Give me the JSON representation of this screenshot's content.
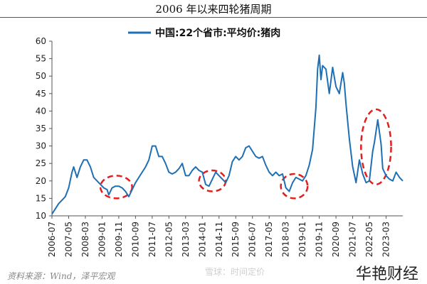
{
  "chart_data": {
    "type": "line",
    "title": "2006 年以来四轮猪周期",
    "series": [
      {
        "name": "中国:22个省市:平均价:猪肉",
        "color": "#1f6fb4",
        "points": [
          [
            "2006-07",
            10.5
          ],
          [
            "2006-09",
            12.0
          ],
          [
            "2006-11",
            13.5
          ],
          [
            "2007-01",
            14.5
          ],
          [
            "2007-03",
            15.5
          ],
          [
            "2007-05",
            18.0
          ],
          [
            "2007-07",
            22.5
          ],
          [
            "2007-08",
            24.0
          ],
          [
            "2007-10",
            21.0
          ],
          [
            "2007-12",
            24.0
          ],
          [
            "2008-02",
            26.0
          ],
          [
            "2008-04",
            26.0
          ],
          [
            "2008-06",
            24.0
          ],
          [
            "2008-08",
            21.0
          ],
          [
            "2008-10",
            20.0
          ],
          [
            "2008-12",
            19.0
          ],
          [
            "2009-02",
            18.0
          ],
          [
            "2009-04",
            17.5
          ],
          [
            "2009-05",
            16.0
          ],
          [
            "2009-07",
            18.0
          ],
          [
            "2009-09",
            18.5
          ],
          [
            "2009-11",
            18.5
          ],
          [
            "2010-01",
            18.0
          ],
          [
            "2010-03",
            17.0
          ],
          [
            "2010-05",
            15.5
          ],
          [
            "2010-07",
            17.5
          ],
          [
            "2010-09",
            19.5
          ],
          [
            "2010-11",
            21.0
          ],
          [
            "2011-01",
            22.5
          ],
          [
            "2011-03",
            24.0
          ],
          [
            "2011-05",
            26.0
          ],
          [
            "2011-07",
            30.0
          ],
          [
            "2011-09",
            30.0
          ],
          [
            "2011-11",
            27.0
          ],
          [
            "2012-01",
            27.0
          ],
          [
            "2012-03",
            25.0
          ],
          [
            "2012-05",
            22.5
          ],
          [
            "2012-07",
            22.0
          ],
          [
            "2012-09",
            22.5
          ],
          [
            "2012-11",
            23.5
          ],
          [
            "2013-01",
            25.0
          ],
          [
            "2013-03",
            21.5
          ],
          [
            "2013-05",
            21.5
          ],
          [
            "2013-07",
            23.0
          ],
          [
            "2013-09",
            24.0
          ],
          [
            "2013-11",
            23.0
          ],
          [
            "2014-01",
            22.5
          ],
          [
            "2014-03",
            19.0
          ],
          [
            "2014-05",
            18.5
          ],
          [
            "2014-07",
            20.5
          ],
          [
            "2014-09",
            22.5
          ],
          [
            "2014-11",
            21.5
          ],
          [
            "2015-01",
            20.5
          ],
          [
            "2015-03",
            19.5
          ],
          [
            "2015-05",
            21.5
          ],
          [
            "2015-07",
            25.5
          ],
          [
            "2015-09",
            27.0
          ],
          [
            "2015-11",
            26.0
          ],
          [
            "2016-01",
            27.0
          ],
          [
            "2016-03",
            29.5
          ],
          [
            "2016-05",
            30.0
          ],
          [
            "2016-07",
            28.5
          ],
          [
            "2016-09",
            27.0
          ],
          [
            "2016-11",
            26.5
          ],
          [
            "2017-01",
            27.0
          ],
          [
            "2017-03",
            24.5
          ],
          [
            "2017-05",
            22.5
          ],
          [
            "2017-07",
            21.5
          ],
          [
            "2017-09",
            22.5
          ],
          [
            "2017-11",
            21.5
          ],
          [
            "2018-01",
            22.0
          ],
          [
            "2018-03",
            18.0
          ],
          [
            "2018-05",
            17.0
          ],
          [
            "2018-07",
            19.5
          ],
          [
            "2018-09",
            21.0
          ],
          [
            "2018-11",
            20.5
          ],
          [
            "2019-01",
            20.0
          ],
          [
            "2019-03",
            21.5
          ],
          [
            "2019-05",
            24.5
          ],
          [
            "2019-07",
            29.0
          ],
          [
            "2019-09",
            41.0
          ],
          [
            "2019-10",
            52.0
          ],
          [
            "2019-11",
            56.0
          ],
          [
            "2019-12",
            49.0
          ],
          [
            "2020-01",
            53.0
          ],
          [
            "2020-03",
            52.0
          ],
          [
            "2020-05",
            45.0
          ],
          [
            "2020-07",
            52.5
          ],
          [
            "2020-09",
            47.0
          ],
          [
            "2020-11",
            45.0
          ],
          [
            "2021-01",
            51.0
          ],
          [
            "2021-02",
            48.0
          ],
          [
            "2021-03",
            42.0
          ],
          [
            "2021-05",
            32.0
          ],
          [
            "2021-07",
            24.0
          ],
          [
            "2021-09",
            19.5
          ],
          [
            "2021-11",
            26.0
          ],
          [
            "2022-01",
            22.0
          ],
          [
            "2022-03",
            19.5
          ],
          [
            "2022-05",
            20.0
          ],
          [
            "2022-07",
            28.5
          ],
          [
            "2022-08",
            31.0
          ],
          [
            "2022-10",
            37.5
          ],
          [
            "2022-12",
            30.5
          ],
          [
            "2023-01",
            23.5
          ],
          [
            "2023-03",
            21.5
          ],
          [
            "2023-05",
            20.5
          ],
          [
            "2023-07",
            20.0
          ],
          [
            "2023-09",
            22.5
          ],
          [
            "2023-11",
            21.0
          ],
          [
            "2024-01",
            20.0
          ]
        ]
      }
    ],
    "xticks": [
      "2006-07",
      "2007-05",
      "2008-03",
      "2009-01",
      "2009-11",
      "2010-09",
      "2011-07",
      "2012-05",
      "2013-03",
      "2014-01",
      "2014-11",
      "2015-09",
      "2016-07",
      "2017-05",
      "2018-03",
      "2019-01",
      "2019-11",
      "2020-09",
      "2021-07",
      "2022-05",
      "2023-03"
    ],
    "yticks": [
      10,
      15,
      20,
      25,
      30,
      35,
      40,
      45,
      50,
      55,
      60
    ],
    "ylim": [
      10,
      60
    ],
    "xlim": [
      "2006-07",
      "2024-01"
    ],
    "grid": false,
    "legend_position": "top-center",
    "annotations": [
      {
        "type": "dashed-ellipse",
        "color": "#e02020",
        "from": "2008-12",
        "to": "2010-07",
        "ylow": 15.0,
        "yhigh": 21.5
      },
      {
        "type": "dashed-ellipse",
        "color": "#e02020",
        "from": "2013-11",
        "to": "2015-03",
        "ylow": 17.0,
        "yhigh": 23.0
      },
      {
        "type": "dashed-ellipse",
        "color": "#e02020",
        "from": "2017-12",
        "to": "2019-04",
        "ylow": 15.0,
        "yhigh": 22.0
      },
      {
        "type": "dashed-ellipse",
        "color": "#e02020",
        "from": "2021-12",
        "to": "2023-06",
        "ylow": 19.0,
        "yhigh": 40.5
      }
    ]
  },
  "source_note": "资料来源：Wind，泽平宏观",
  "watermarks": [
    "雪球：时间定价",
    "华艳财经"
  ]
}
